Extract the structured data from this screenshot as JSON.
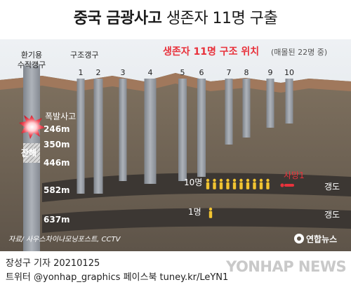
{
  "title_bold": "중국 금광사고",
  "title_light": " 생존자 11명 구출",
  "subtitle_main": "생존자 11명 구조 위치",
  "subtitle_note": "(매몰된 22명 중)",
  "vent_shaft_label_1": "환기용",
  "vent_shaft_label_2": "수직갱구",
  "rescue_shafts_label": "구조갱구",
  "shaft_numbers": [
    "1",
    "2",
    "3",
    "4",
    "5",
    "6",
    "7",
    "8",
    "9",
    "10"
  ],
  "explosion_label": "폭발사고",
  "debris_label": "잔해",
  "depths": [
    "246m",
    "350m",
    "446m",
    "582m",
    "637m"
  ],
  "group_582": "10명",
  "death_label": "사망1",
  "group_637": "1명",
  "tunnel_label": "갱도",
  "source": "자료/ 사우스차이나모닝포스트, CCTV",
  "logo_text": "연합뉴스",
  "reporter": "장성구 기자  20210125",
  "twitter": "트위터 @yonhap_graphics  페이스북 tuney.kr/LeYN1",
  "watermark": "YONHAP NEWS",
  "colors": {
    "accent": "#e8323c",
    "figure": "#f2c431",
    "shaft": "#9da3ab",
    "surface": "#9a7b62",
    "sky": "#e6eaef"
  },
  "icons": {
    "explosion": "explosion-icon",
    "person": "person-icon",
    "debris": "debris-icon",
    "logo": "yonhap-logo-icon"
  }
}
